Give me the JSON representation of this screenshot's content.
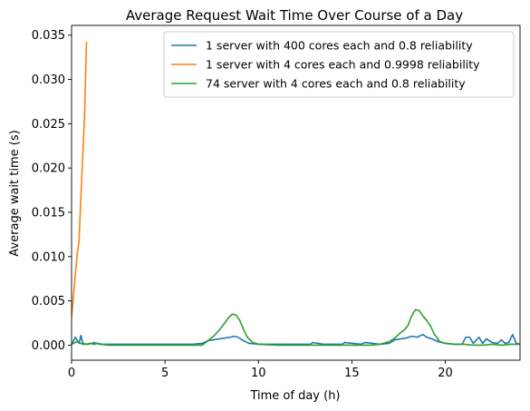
{
  "chart_data": {
    "type": "line",
    "title": "Average Request Wait Time Over Course of a Day",
    "xlabel": "Time of day (h)",
    "ylabel": "Average wait time (s)",
    "xlim": [
      0,
      24
    ],
    "ylim": [
      -0.0017,
      0.0361
    ],
    "x_ticks": [
      0,
      5,
      10,
      15,
      20
    ],
    "x_tick_labels": [
      "0",
      "5",
      "10",
      "15",
      "20"
    ],
    "y_ticks": [
      0,
      0.005,
      0.01,
      0.015,
      0.02,
      0.025,
      0.03,
      0.035
    ],
    "y_tick_labels": [
      "0.000",
      "0.005",
      "0.010",
      "0.015",
      "0.020",
      "0.025",
      "0.030",
      "0.035"
    ],
    "grid": false,
    "legend_position": "upper-right",
    "series": [
      {
        "name": "1 server with 400 cores each and 0.8 reliability",
        "color": "#1f77b4",
        "x": [
          0,
          0.2,
          0.4,
          0.5,
          0.6,
          0.8,
          1.0,
          1.2,
          1.4,
          1.6,
          1.8,
          2.5,
          3.5,
          4.5,
          5.5,
          6.5,
          7.0,
          7.3,
          7.6,
          7.9,
          8.2,
          8.5,
          8.7,
          8.9,
          9.2,
          9.5,
          10.0,
          11.0,
          12.0,
          12.8,
          12.9,
          13.5,
          14.5,
          14.6,
          15.5,
          15.7,
          16.5,
          17.0,
          17.3,
          17.6,
          17.9,
          18.2,
          18.5,
          18.8,
          19.0,
          19.3,
          19.6,
          20.0,
          20.5,
          20.9,
          21.1,
          21.3,
          21.5,
          21.8,
          22.0,
          22.2,
          22.5,
          22.8,
          23.0,
          23.2,
          23.4,
          23.6,
          23.8,
          24.0
        ],
        "y": [
          0.0001,
          0.0009,
          0.0002,
          0.0011,
          0.0002,
          0.0001,
          0.0002,
          0.0001,
          0.0002,
          0.0001,
          0.0001,
          0.0001,
          0.0001,
          0.0001,
          0.0001,
          0.0001,
          0.0002,
          0.0005,
          0.0006,
          0.0007,
          0.0008,
          0.0009,
          0.001,
          0.0009,
          0.0005,
          0.0002,
          0.0001,
          0.0001,
          0.0001,
          0.0001,
          0.0003,
          0.0001,
          0.0001,
          0.0003,
          0.0001,
          0.0003,
          0.0001,
          0.0002,
          0.0006,
          0.0007,
          0.0008,
          0.001,
          0.0009,
          0.0012,
          0.0009,
          0.0007,
          0.0004,
          0.0002,
          0.0001,
          0.0001,
          0.0009,
          0.0009,
          0.0002,
          0.0009,
          0.0002,
          0.0007,
          0.0003,
          0.0002,
          0.0006,
          0.0002,
          0.0003,
          0.0012,
          0.0002,
          0.0001
        ]
      },
      {
        "name": "1 server with 4 cores each and 0.9998 reliability",
        "color": "#ff7f0e",
        "x": [
          0,
          0.1,
          0.2,
          0.3,
          0.4,
          0.5,
          0.6,
          0.7,
          0.8
        ],
        "y": [
          0.0032,
          0.0055,
          0.008,
          0.0102,
          0.0118,
          0.0168,
          0.0215,
          0.0262,
          0.0342
        ]
      },
      {
        "name": "74 server with 4 cores each and 0.8 reliability",
        "color": "#2ca02c",
        "x": [
          0,
          0.3,
          0.6,
          0.9,
          1.2,
          1.5,
          2.0,
          3.0,
          4.0,
          5.0,
          6.0,
          7.0,
          7.3,
          7.6,
          7.9,
          8.2,
          8.4,
          8.6,
          8.8,
          9.0,
          9.2,
          9.4,
          9.7,
          10.0,
          11.0,
          12.0,
          13.0,
          14.0,
          15.0,
          16.0,
          16.5,
          17.0,
          17.3,
          17.6,
          17.8,
          18.0,
          18.2,
          18.4,
          18.6,
          18.8,
          19.0,
          19.2,
          19.4,
          19.7,
          20.0,
          20.5,
          21.0,
          21.5,
          22.0,
          22.5,
          23.0,
          23.5,
          24.0
        ],
        "y": [
          0.0001,
          0.0004,
          0.0001,
          0.0001,
          0.0003,
          0.0001,
          0.0,
          0.0,
          0.0,
          0.0,
          0.0,
          0.0,
          0.0005,
          0.001,
          0.0017,
          0.0025,
          0.0031,
          0.0035,
          0.0034,
          0.0028,
          0.0018,
          0.0009,
          0.0003,
          0.0001,
          0.0,
          0.0,
          0.0,
          0.0,
          0.0,
          0.0,
          0.0001,
          0.0004,
          0.0008,
          0.0014,
          0.0017,
          0.0022,
          0.0033,
          0.004,
          0.0039,
          0.0033,
          0.0028,
          0.0022,
          0.0013,
          0.0004,
          0.0002,
          0.0001,
          0.0001,
          0.0,
          0.0,
          0.0001,
          0.0,
          0.0001,
          0.0001
        ]
      }
    ]
  }
}
